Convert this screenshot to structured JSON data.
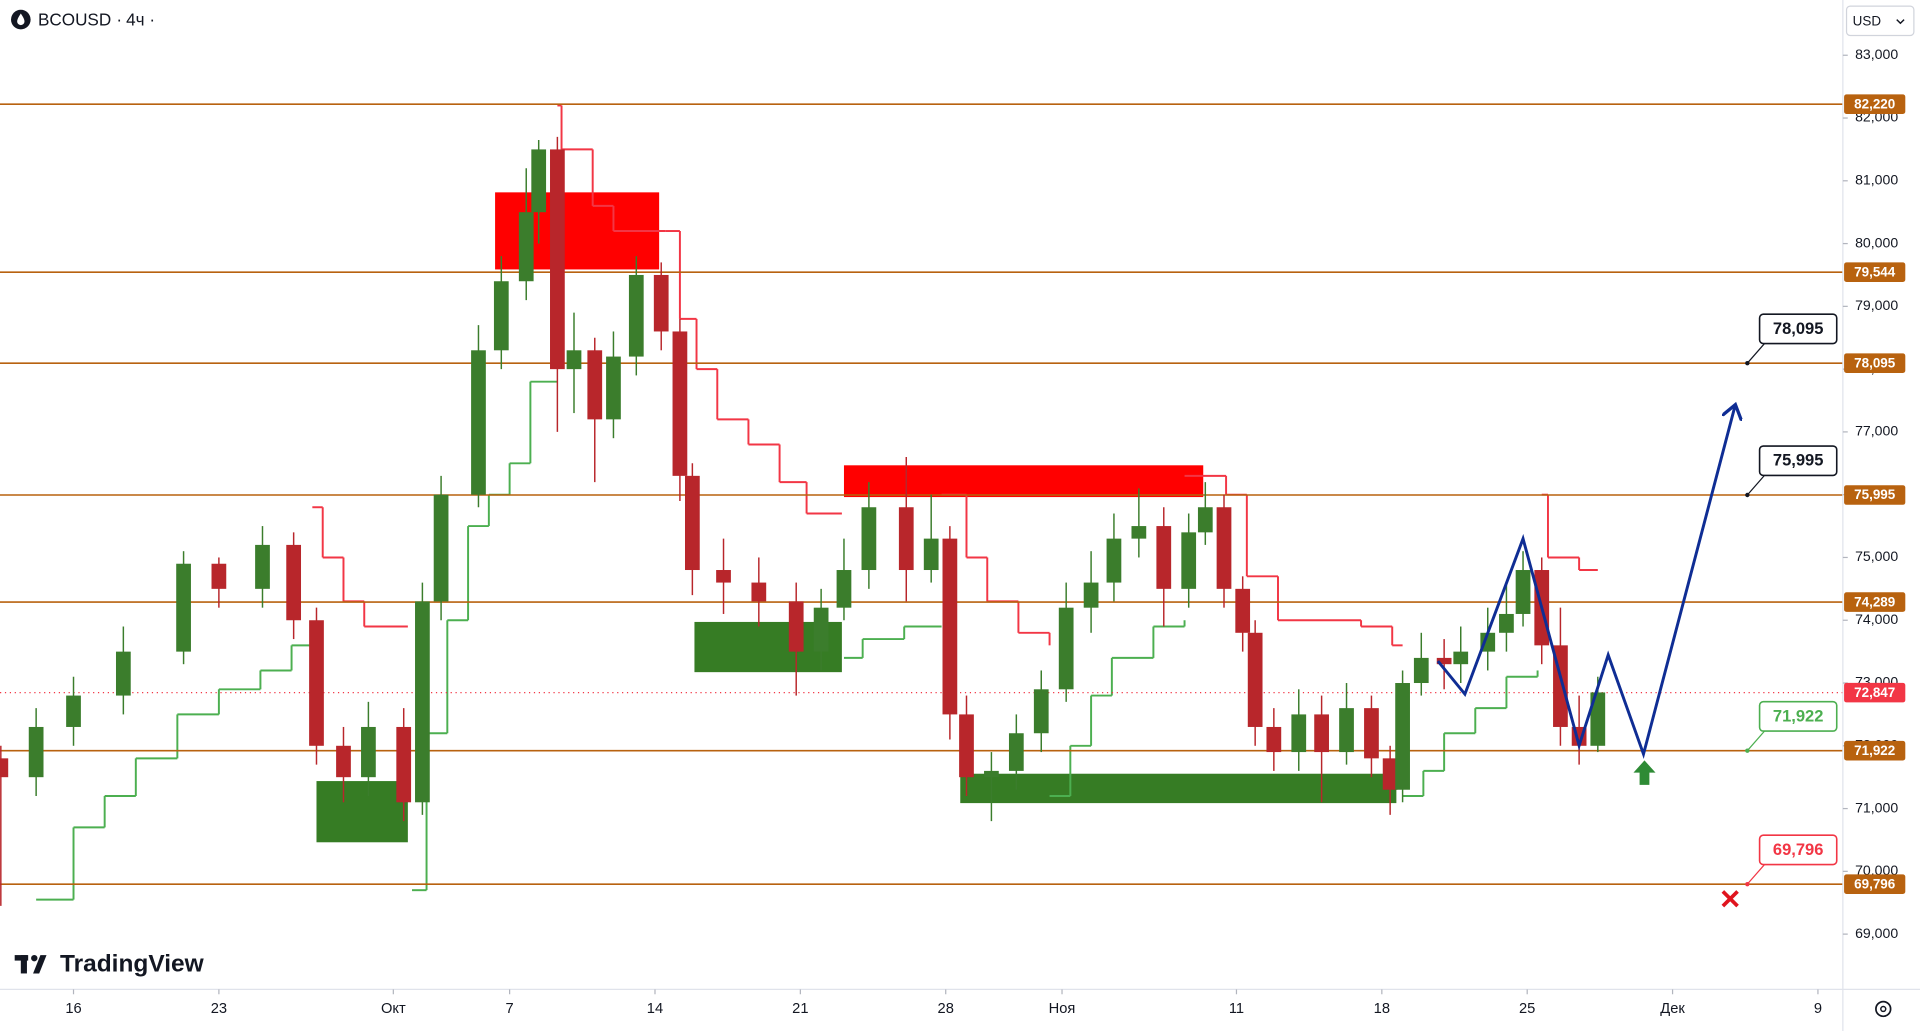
{
  "header": {
    "symbol": "BCOUSD",
    "interval": "4ч"
  },
  "currency": "USD",
  "brand": "TradingView",
  "chart_data": {
    "type": "candlestick",
    "xlim": [
      -3.54,
      85.2
    ],
    "ylim": [
      68120,
      83880
    ],
    "xticks": [
      {
        "value": 0,
        "label": "16"
      },
      {
        "value": 7,
        "label": "23"
      },
      {
        "value": 15.4,
        "label": "Окт"
      },
      {
        "value": 21,
        "label": "7"
      },
      {
        "value": 28,
        "label": "14"
      },
      {
        "value": 35,
        "label": "21"
      },
      {
        "value": 42,
        "label": "28"
      },
      {
        "value": 47.6,
        "label": "Ноя"
      },
      {
        "value": 56,
        "label": "11"
      },
      {
        "value": 63,
        "label": "18"
      },
      {
        "value": 70,
        "label": "25"
      },
      {
        "value": 77,
        "label": "Дек"
      },
      {
        "value": 84,
        "label": "9"
      }
    ],
    "yticks": [
      {
        "value": 69000,
        "label": "69,000"
      },
      {
        "value": 70000,
        "label": "70,000"
      },
      {
        "value": 71000,
        "label": "71,000"
      },
      {
        "value": 72000,
        "label": "72,000"
      },
      {
        "value": 73000,
        "label": "73,000"
      },
      {
        "value": 74000,
        "label": "74,000"
      },
      {
        "value": 75000,
        "label": "75,000"
      },
      {
        "value": 76000,
        "label": "76,000"
      },
      {
        "value": 77000,
        "label": "77,000"
      },
      {
        "value": 78000,
        "label": "78,000"
      },
      {
        "value": 79000,
        "label": "79,000"
      },
      {
        "value": 80000,
        "label": "80,000"
      },
      {
        "value": 81000,
        "label": "81,000"
      },
      {
        "value": 82000,
        "label": "82,000"
      },
      {
        "value": 83000,
        "label": "83,000"
      }
    ],
    "up_color": "#3b7d2c",
    "down_color": "#b8262b",
    "candles": {
      "x": [
        -3.5,
        -1.8,
        0,
        2.4,
        5.3,
        7,
        9.1,
        10.6,
        11.7,
        13,
        14.2,
        15.9,
        16.8,
        17.7,
        19.5,
        20.6,
        21.8,
        22.4,
        23.3,
        24.1,
        25.1,
        26,
        27.1,
        28.3,
        29.2,
        29.8,
        31.3,
        33,
        34.8,
        36,
        37.1,
        38.3,
        40.1,
        41.3,
        42.2,
        43,
        44.2,
        45.4,
        46.6,
        47.8,
        49,
        50.1,
        51.3,
        52.5,
        53.7,
        54.5,
        55.4,
        56.3,
        56.9,
        57.8,
        59,
        60.1,
        61.3,
        62.5,
        63.4,
        64,
        64.9,
        66,
        66.8,
        68.1,
        69,
        69.8,
        70.7,
        71.6,
        72.5,
        73.4
      ],
      "open": [
        71800,
        71500,
        72300,
        72800,
        73500,
        74900,
        74500,
        75200,
        74000,
        72000,
        71500,
        72300,
        71100,
        74300,
        76000,
        78300,
        79400,
        80500,
        81500,
        78000,
        78300,
        77200,
        78200,
        79500,
        78600,
        76300,
        74800,
        74600,
        74300,
        73500,
        74200,
        74800,
        75800,
        74800,
        75300,
        72500,
        71500,
        71600,
        72200,
        72900,
        74200,
        74600,
        75300,
        75500,
        74500,
        75400,
        75800,
        74500,
        73800,
        72300,
        71900,
        72500,
        71900,
        72600,
        71800,
        71300,
        73000,
        73400,
        73300,
        73500,
        73800,
        74100,
        74800,
        73600,
        72300,
        72000
      ],
      "high": [
        72000,
        72600,
        73100,
        73900,
        75100,
        75000,
        75500,
        75400,
        74200,
        72300,
        72700,
        72600,
        74600,
        76300,
        78700,
        79800,
        81200,
        81650,
        81700,
        78900,
        78500,
        78600,
        79800,
        79700,
        78800,
        76500,
        75300,
        75000,
        74600,
        74500,
        75300,
        76200,
        76600,
        76000,
        75500,
        72800,
        71900,
        72500,
        73200,
        74600,
        75100,
        75700,
        76100,
        75800,
        75700,
        76200,
        76000,
        74700,
        74000,
        72600,
        72900,
        72800,
        73000,
        72800,
        72000,
        73200,
        73800,
        73700,
        73900,
        74200,
        74600,
        75100,
        75000,
        74200,
        72800,
        73100
      ],
      "low": [
        69450,
        71200,
        72000,
        72500,
        73300,
        74200,
        74200,
        73700,
        71700,
        71100,
        71200,
        70800,
        70900,
        74000,
        75800,
        78000,
        79100,
        80000,
        77000,
        77300,
        76200,
        76900,
        77900,
        78300,
        75900,
        74400,
        74100,
        73900,
        72800,
        73200,
        74000,
        74500,
        74300,
        74600,
        72100,
        71200,
        70800,
        71300,
        71900,
        72700,
        73800,
        74300,
        75000,
        73900,
        74200,
        75200,
        74200,
        73500,
        72000,
        71600,
        71600,
        71100,
        71700,
        71500,
        70900,
        71100,
        72800,
        72900,
        73000,
        73200,
        73500,
        73900,
        73300,
        72000,
        71700,
        71900
      ],
      "close": [
        71500,
        72300,
        72800,
        73500,
        74900,
        74500,
        75200,
        74000,
        72000,
        71500,
        72300,
        71100,
        74300,
        76000,
        78300,
        79400,
        80500,
        81500,
        78000,
        78300,
        77200,
        78200,
        79500,
        78600,
        76300,
        74800,
        74600,
        74300,
        73500,
        74200,
        74800,
        75800,
        74800,
        75300,
        72500,
        71500,
        71600,
        72200,
        72900,
        74200,
        74600,
        75300,
        75500,
        74500,
        75400,
        75800,
        74500,
        73800,
        72300,
        71900,
        72500,
        71900,
        72600,
        71800,
        71300,
        73000,
        73400,
        73300,
        73500,
        73800,
        74100,
        74800,
        73600,
        72300,
        72000,
        72850
      ]
    },
    "bands": [
      {
        "color": "#4caf50",
        "x": [
          -1.8,
          0,
          1.5,
          3,
          5,
          7,
          9,
          10.5,
          11.5
        ],
        "values": [
          69550,
          70700,
          71200,
          71800,
          72500,
          72900,
          73200,
          73600,
          73600
        ]
      },
      {
        "color": "#f23645",
        "x": [
          11.5,
          12,
          13,
          14,
          16.1
        ],
        "values": [
          75800,
          75000,
          74300,
          73900,
          73900
        ]
      },
      {
        "color": "#4caf50",
        "x": [
          16.3,
          17,
          18,
          19,
          20,
          21,
          22,
          23.3
        ],
        "values": [
          69700,
          72200,
          74000,
          75500,
          76000,
          76500,
          77800,
          77800
        ]
      },
      {
        "color": "#f23645",
        "x": [
          23.3,
          23.5,
          25,
          26,
          28.5,
          29.2,
          30,
          31,
          32.5,
          34,
          35.3,
          37
        ],
        "values": [
          82200,
          81500,
          80600,
          80200,
          80200,
          78800,
          78000,
          77200,
          76800,
          76200,
          75700,
          75700
        ]
      },
      {
        "color": "#4caf50",
        "x": [
          37.1,
          38,
          40,
          41.8
        ],
        "values": [
          73400,
          73700,
          73900,
          73900
        ]
      },
      {
        "color": "#f23645",
        "x": [
          41.8,
          43,
          44,
          45.5,
          47
        ],
        "values": [
          76000,
          75000,
          74300,
          73800,
          73600
        ]
      },
      {
        "color": "#4caf50",
        "x": [
          47,
          48,
          49,
          50,
          52,
          53.5
        ],
        "values": [
          71200,
          72000,
          72800,
          73400,
          73900,
          74000
        ]
      },
      {
        "color": "#f23645",
        "x": [
          53.5,
          55.5,
          56.5,
          58,
          62,
          63.5,
          64
        ],
        "values": [
          76300,
          76000,
          74700,
          74000,
          73900,
          73600,
          73600
        ]
      },
      {
        "color": "#4caf50",
        "x": [
          64,
          65,
          66,
          67.5,
          69,
          70.5
        ],
        "values": [
          71200,
          71600,
          72200,
          72600,
          73100,
          73200
        ]
      },
      {
        "color": "#f23645",
        "x": [
          70.7,
          71,
          72.5,
          73.4
        ],
        "values": [
          76000,
          75000,
          74800,
          74800
        ]
      }
    ],
    "zones": [
      {
        "color": "#ff0000",
        "x": [
          20.3,
          28.2
        ],
        "y": [
          79588,
          80816
        ]
      },
      {
        "color": "#ff0000",
        "x": [
          37.1,
          54.4
        ],
        "y": [
          75962,
          76468
        ]
      },
      {
        "color": "#367c24",
        "x": [
          11.7,
          16.1
        ],
        "y": [
          70463,
          71438
        ]
      },
      {
        "color": "#367c24",
        "x": [
          29.9,
          37.0
        ],
        "y": [
          73173,
          73973
        ]
      },
      {
        "color": "#367c24",
        "x": [
          42.7,
          63.7
        ],
        "y": [
          71087,
          71555
        ]
      }
    ],
    "levels": [
      {
        "value": 82220,
        "label": "82,220",
        "color": "#b8620f"
      },
      {
        "value": 79544,
        "label": "79,544",
        "color": "#b8620f"
      },
      {
        "value": 78095,
        "label": "78,095",
        "color": "#b8620f",
        "callout_color": "#131722"
      },
      {
        "value": 75995,
        "label": "75,995",
        "color": "#b8620f",
        "callout_color": "#131722"
      },
      {
        "value": 74289,
        "label": "74,289",
        "color": "#b8620f"
      },
      {
        "value": 71922,
        "label": "71,922",
        "color": "#b8620f",
        "callout_color": "#4caf50"
      },
      {
        "value": 69796,
        "label": "69,796",
        "color": "#b8620f",
        "callout_color": "#f23645"
      }
    ],
    "current_price": {
      "value": 72847,
      "label": "72,847",
      "color": "#f23645"
    },
    "projection": {
      "color": "#0f2d94",
      "x": [
        65.7,
        67.0,
        69.8,
        72.5,
        73.9,
        75.6,
        80.0
      ],
      "values": [
        73349,
        72823,
        75299,
        72004,
        73447,
        71868,
        77404
      ]
    }
  }
}
